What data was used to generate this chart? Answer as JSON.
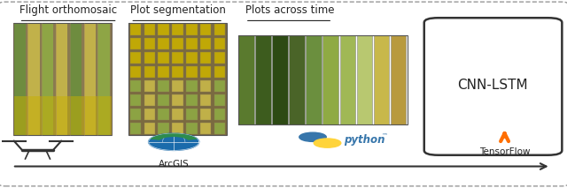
{
  "fig_width": 6.4,
  "fig_height": 2.13,
  "dpi": 100,
  "background_color": "#ffffff",
  "border_color": "#999999",
  "title1": "Flight orthomosaic",
  "title2": "Plot segmentation",
  "title3": "Plots across time",
  "title4": "CNN-LSTM",
  "label1": "ArcGIS",
  "label2": "python",
  "label3": "TensorFlow",
  "field1_colors": [
    "#6b8f3e",
    "#c8b84a",
    "#8faa44",
    "#c8b84a",
    "#6b8f3e",
    "#c8b84a",
    "#8faa44"
  ],
  "field2_colors": [
    "#8faa44",
    "#c8b84a",
    "#8faa44",
    "#c8b84a",
    "#8faa44",
    "#c8b84a",
    "#8faa44"
  ],
  "time_colors": [
    "#5a7a2e",
    "#3d5c1e",
    "#2d4a14",
    "#4a6428",
    "#6b8f3e",
    "#8faa44",
    "#a0b855",
    "#b8c870",
    "#c8b84a",
    "#b89a3e"
  ],
  "text_color": "#222222",
  "underline_color": "#222222",
  "arrow_color": "#333333",
  "box_border_color": "#333333",
  "python_blue": "#3776ab",
  "python_yellow": "#ffd43b",
  "arcgis_blue": "#1a6bab",
  "arcgis_green": "#2d8c4e",
  "tf_orange": "#ff6f00",
  "title_fontsize": 8.5,
  "label_fontsize": 7.5,
  "cnnlstm_fontsize": 11
}
